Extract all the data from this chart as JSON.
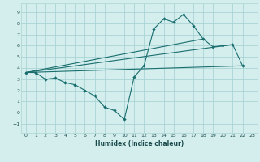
{
  "xlabel": "Humidex (Indice chaleur)",
  "background_color": "#d4eeee",
  "grid_color": "#aad4d4",
  "line_color": "#1a6e6e",
  "xlim": [
    -0.5,
    23.5
  ],
  "ylim": [
    -1.8,
    9.8
  ],
  "xticks": [
    0,
    1,
    2,
    3,
    4,
    5,
    6,
    7,
    8,
    9,
    10,
    11,
    12,
    13,
    14,
    15,
    16,
    17,
    18,
    19,
    20,
    21,
    22,
    23
  ],
  "yticks": [
    -1,
    0,
    1,
    2,
    3,
    4,
    5,
    6,
    7,
    8,
    9
  ],
  "series1_x": [
    0,
    1,
    2,
    3,
    4,
    5,
    6,
    7,
    8,
    9,
    10,
    11,
    12,
    13,
    14,
    15,
    16,
    17,
    18,
    19,
    20,
    21,
    22
  ],
  "series1_y": [
    3.6,
    3.6,
    3.0,
    3.1,
    2.7,
    2.5,
    2.0,
    1.5,
    0.5,
    0.2,
    -0.6,
    3.2,
    4.2,
    7.5,
    8.4,
    8.1,
    8.8,
    7.8,
    6.6,
    5.9,
    6.0,
    6.1,
    4.2
  ],
  "series2_x": [
    0,
    22
  ],
  "series2_y": [
    3.6,
    4.2
  ],
  "series3_x": [
    0,
    21
  ],
  "series3_y": [
    3.6,
    6.1
  ],
  "series4_x": [
    0,
    18
  ],
  "series4_y": [
    3.6,
    6.6
  ]
}
